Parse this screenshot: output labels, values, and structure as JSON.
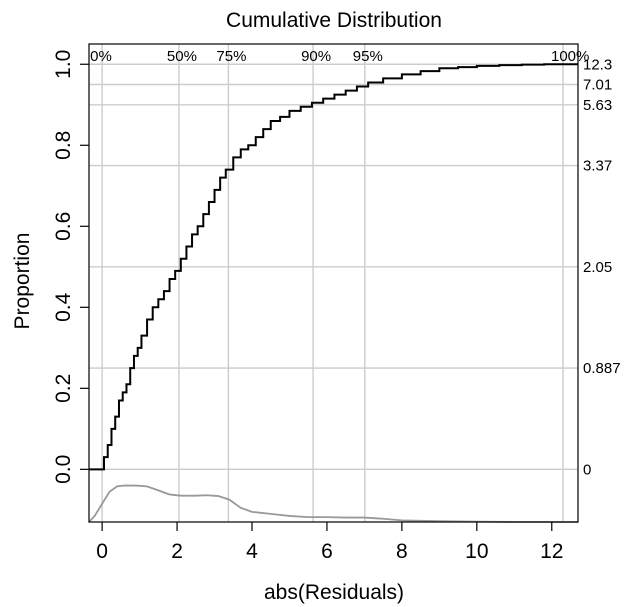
{
  "chart_data": {
    "type": "line",
    "title": "Cumulative Distribution",
    "xlabel": "abs(Residuals)",
    "ylabel": "Proportion",
    "xlim": [
      -0.35,
      12.7
    ],
    "ylim": [
      -0.13,
      1.05
    ],
    "x_ticks": [
      0,
      2,
      4,
      6,
      8,
      10,
      12
    ],
    "y_ticks": [
      0.0,
      0.2,
      0.4,
      0.6,
      0.8,
      1.0
    ],
    "x_tick_labels": [
      "0",
      "2",
      "4",
      "6",
      "8",
      "10",
      "12"
    ],
    "y_tick_labels": [
      "0.0",
      "0.2",
      "0.4",
      "0.6",
      "0.8",
      "1.0"
    ],
    "grid": true,
    "percentile_lines": [
      {
        "label": "0%",
        "x": 0
      },
      {
        "label": "50%",
        "x": 2.05
      },
      {
        "label": "75%",
        "x": 3.37
      },
      {
        "label": "90%",
        "x": 5.63
      },
      {
        "label": "95%",
        "x": 7.01
      },
      {
        "label": "100%",
        "x": 12.3
      }
    ],
    "proportion_lines": [
      {
        "label": "0",
        "y": 0.0
      },
      {
        "label": "0.887",
        "y": 0.25
      },
      {
        "label": "2.05",
        "y": 0.5
      },
      {
        "label": "3.37",
        "y": 0.75
      },
      {
        "label": "5.63",
        "y": 0.9
      },
      {
        "label": "7.01",
        "y": 0.95
      },
      {
        "label": "12.3",
        "y": 1.0
      }
    ],
    "series": [
      {
        "kind": "ecdf",
        "color": "#000000",
        "x": [
          -0.35,
          0,
          0.05,
          0.15,
          0.25,
          0.35,
          0.45,
          0.55,
          0.65,
          0.75,
          0.85,
          0.95,
          1.05,
          1.2,
          1.35,
          1.5,
          1.65,
          1.8,
          1.95,
          2.1,
          2.25,
          2.4,
          2.55,
          2.7,
          2.85,
          3.0,
          3.15,
          3.3,
          3.5,
          3.7,
          3.9,
          4.1,
          4.3,
          4.5,
          4.75,
          5.0,
          5.3,
          5.6,
          5.9,
          6.2,
          6.5,
          6.8,
          7.1,
          7.5,
          8.0,
          8.5,
          9.0,
          9.5,
          10.0,
          10.6,
          11.2,
          11.8,
          12.3,
          12.7
        ],
        "y": [
          0.0,
          0.0,
          0.03,
          0.06,
          0.1,
          0.13,
          0.17,
          0.19,
          0.21,
          0.25,
          0.28,
          0.3,
          0.33,
          0.37,
          0.4,
          0.42,
          0.44,
          0.47,
          0.49,
          0.52,
          0.55,
          0.58,
          0.6,
          0.63,
          0.66,
          0.69,
          0.72,
          0.74,
          0.77,
          0.79,
          0.8,
          0.82,
          0.84,
          0.86,
          0.87,
          0.885,
          0.895,
          0.905,
          0.915,
          0.925,
          0.935,
          0.945,
          0.955,
          0.965,
          0.975,
          0.983,
          0.99,
          0.993,
          0.996,
          0.998,
          0.999,
          1.0,
          1.0,
          1.0
        ]
      },
      {
        "kind": "density",
        "color": "#999999",
        "x": [
          -0.35,
          -0.2,
          0,
          0.2,
          0.4,
          0.6,
          0.9,
          1.2,
          1.5,
          1.8,
          2.1,
          2.5,
          2.8,
          3.1,
          3.4,
          3.7,
          4.0,
          4.5,
          5.0,
          5.5,
          6.0,
          6.5,
          7.0,
          7.5,
          8.0,
          8.5,
          9.0,
          10.0,
          11.0,
          12.0,
          12.7
        ],
        "y": [
          -0.13,
          -0.115,
          -0.085,
          -0.055,
          -0.042,
          -0.04,
          -0.04,
          -0.042,
          -0.052,
          -0.062,
          -0.065,
          -0.065,
          -0.064,
          -0.066,
          -0.075,
          -0.095,
          -0.105,
          -0.11,
          -0.115,
          -0.118,
          -0.118,
          -0.119,
          -0.119,
          -0.122,
          -0.126,
          -0.127,
          -0.128,
          -0.129,
          -0.13,
          -0.13,
          -0.13
        ]
      }
    ]
  }
}
